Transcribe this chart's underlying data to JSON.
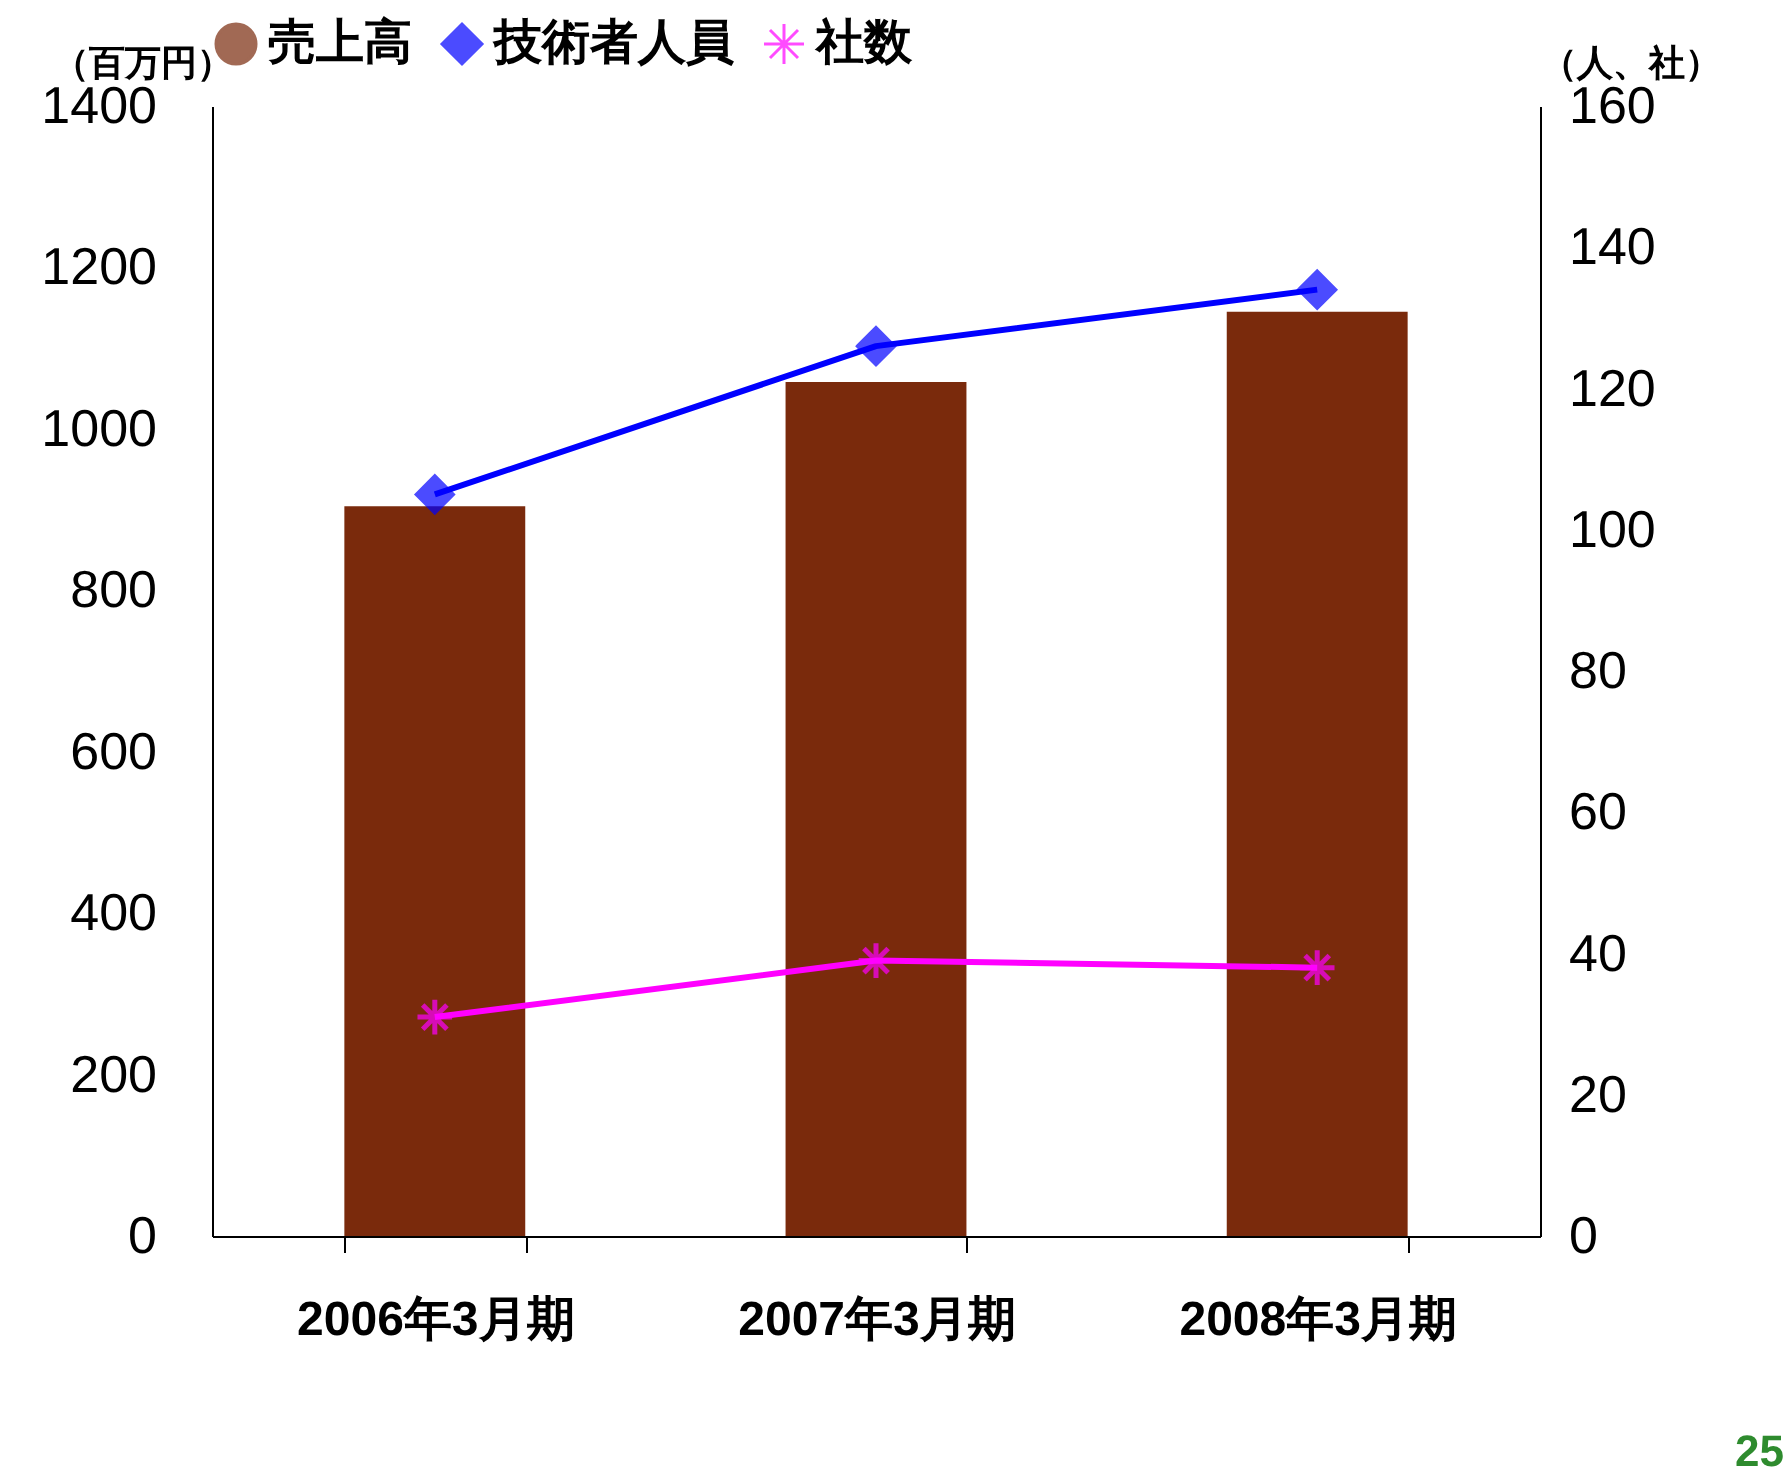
{
  "chart_data": {
    "type": "bar",
    "categories": [
      "2006年3月期",
      "2007年3月期",
      "2008年3月期"
    ],
    "ylabel": "（百万円）",
    "y2label": "（人、社）",
    "series": [
      {
        "name": "売上高",
        "color": "#7a2a0c",
        "values": [
          904,
          1058,
          1145
        ]
      },
      {
        "name": "技術者人員",
        "type": "line",
        "axis": "y2",
        "color": "#0000ff",
        "marker": "diamond",
        "values": [
          105,
          126,
          134
        ]
      },
      {
        "name": "社数",
        "type": "line",
        "axis": "y2",
        "color": "#ff00ff",
        "marker": "cross",
        "values": [
          31,
          39,
          38
        ]
      }
    ],
    "ylim": [
      0,
      1400
    ],
    "yticks": [
      0,
      200,
      400,
      600,
      800,
      1000,
      1200,
      1400
    ],
    "y2lim": [
      0,
      160
    ],
    "y2ticks": [
      0,
      20,
      40,
      60,
      80,
      100,
      120,
      140,
      160
    ],
    "legend": "top",
    "grid": false,
    "annotations": [
      "25"
    ]
  }
}
